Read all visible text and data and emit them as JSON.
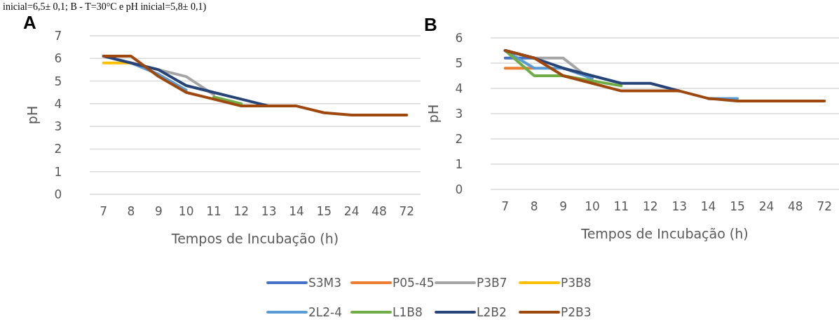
{
  "chart_data": [
    {
      "type": "line",
      "title": "A",
      "annotations": [
        "inicial=6,5± 0,1; B - T=30°C e pH inicial=5,8± 0,1)"
      ],
      "xlabel": "Tempos de Incubação (h)",
      "ylabel": "pH",
      "categories": [
        "7",
        "8",
        "9",
        "10",
        "11",
        "12",
        "13",
        "14",
        "15",
        "24",
        "48",
        "72"
      ],
      "ylim": [
        0,
        7
      ],
      "yticks": [
        0,
        1,
        2,
        3,
        4,
        5,
        6,
        7
      ],
      "grid": "y",
      "line_style": "solid",
      "series": [
        {
          "color": "#a5a5a5",
          "values": [
            null,
            5.8,
            5.5,
            5.2,
            4.4,
            null,
            null,
            null,
            null,
            null,
            null,
            null
          ]
        },
        {
          "color": "#ffc000",
          "values": [
            5.8,
            5.8,
            null,
            null,
            null,
            null,
            null,
            null,
            null,
            null,
            null,
            null
          ]
        },
        {
          "color": "#5b9bd5",
          "values": [
            null,
            5.8,
            5.3,
            4.6,
            null,
            null,
            null,
            null,
            null,
            null,
            null,
            null
          ]
        },
        {
          "color": "#70ad47",
          "values": [
            null,
            null,
            null,
            null,
            4.3,
            4.0,
            null,
            null,
            null,
            null,
            null,
            null
          ]
        },
        {
          "color": "#264478",
          "values": [
            6.1,
            5.8,
            5.5,
            4.8,
            4.5,
            4.2,
            3.9,
            null,
            null,
            null,
            null,
            null
          ]
        },
        {
          "color": "#9e480e",
          "values": [
            6.1,
            6.1,
            5.2,
            4.5,
            4.2,
            3.9,
            3.9,
            3.9,
            3.6,
            3.5,
            3.5,
            3.5
          ]
        }
      ]
    },
    {
      "type": "line",
      "title": "B",
      "xlabel": "Tempos de Incubação (h)",
      "ylabel": "pH",
      "categories": [
        "7",
        "8",
        "9",
        "10",
        "11",
        "12",
        "13",
        "14",
        "15",
        "24",
        "48",
        "72"
      ],
      "ylim": [
        0,
        6
      ],
      "yticks": [
        0,
        1,
        2,
        3,
        4,
        5,
        6
      ],
      "grid": "y",
      "legend": "bottom",
      "line_style": "solid",
      "series": [
        {
          "name": "S3M3",
          "color": "#4472c4",
          "values": [
            5.2,
            5.2,
            null,
            null,
            null,
            null,
            null,
            null,
            null,
            null,
            null,
            null
          ]
        },
        {
          "name": "P05-45",
          "color": "#ed7d31",
          "values": [
            4.8,
            4.8,
            null,
            null,
            null,
            null,
            null,
            null,
            null,
            null,
            null,
            null
          ]
        },
        {
          "name": "P3B7",
          "color": "#a5a5a5",
          "values": [
            null,
            5.2,
            5.2,
            4.3,
            null,
            null,
            null,
            null,
            null,
            null,
            null,
            null
          ]
        },
        {
          "name": "P3B8",
          "color": "#ffc000",
          "values": [
            null,
            null,
            null,
            null,
            null,
            null,
            null,
            null,
            null,
            null,
            null,
            null
          ]
        },
        {
          "name": "2L2-4",
          "color": "#5b9bd5",
          "values": [
            5.5,
            4.8,
            4.8,
            4.4,
            null,
            null,
            null,
            3.6,
            3.6,
            null,
            null,
            null
          ]
        },
        {
          "name": "L1B8",
          "color": "#70ad47",
          "values": [
            5.5,
            4.5,
            4.5,
            4.3,
            4.1,
            null,
            null,
            null,
            null,
            null,
            null,
            null
          ]
        },
        {
          "name": "L2B2",
          "color": "#264478",
          "values": [
            5.5,
            5.2,
            4.8,
            4.5,
            4.2,
            4.2,
            3.9,
            null,
            null,
            null,
            null,
            null
          ]
        },
        {
          "name": "P2B3",
          "color": "#9e480e",
          "values": [
            5.5,
            5.2,
            4.5,
            4.2,
            3.9,
            3.9,
            3.9,
            3.6,
            3.5,
            3.5,
            3.5,
            3.5
          ]
        }
      ]
    }
  ]
}
